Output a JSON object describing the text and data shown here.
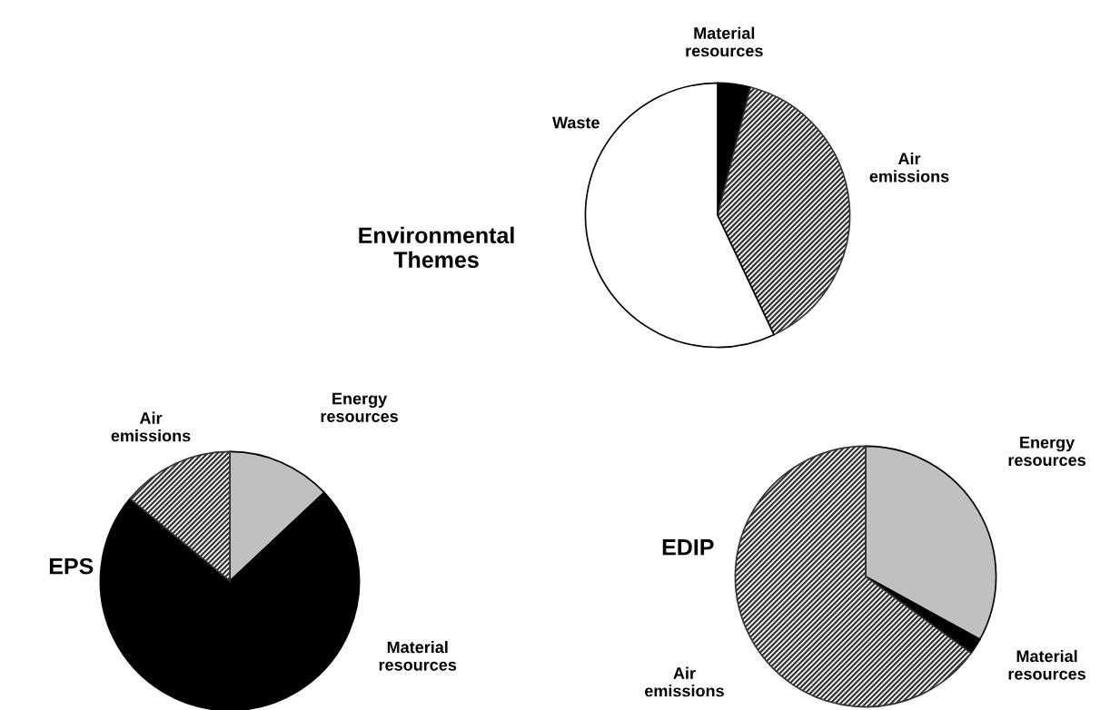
{
  "chart_data": [
    {
      "type": "pie",
      "title": "Environmental Themes",
      "categories": [
        "Material resources",
        "Air emissions",
        "Waste"
      ],
      "values": [
        4,
        39,
        57
      ],
      "colors": [
        "#000000",
        "#333333",
        "#ffffff"
      ]
    },
    {
      "type": "pie",
      "title": "EPS",
      "categories": [
        "Energy resources",
        "Material resources",
        "Air emissions"
      ],
      "values": [
        13,
        73,
        14
      ],
      "colors": [
        "#c0c0c0",
        "#000000",
        "#333333"
      ]
    },
    {
      "type": "pie",
      "title": "EDIP",
      "categories": [
        "Energy resources",
        "Material resources",
        "Air emissions"
      ],
      "values": [
        33,
        2,
        65
      ],
      "colors": [
        "#c0c0c0",
        "#000000",
        "#333333"
      ]
    }
  ]
}
